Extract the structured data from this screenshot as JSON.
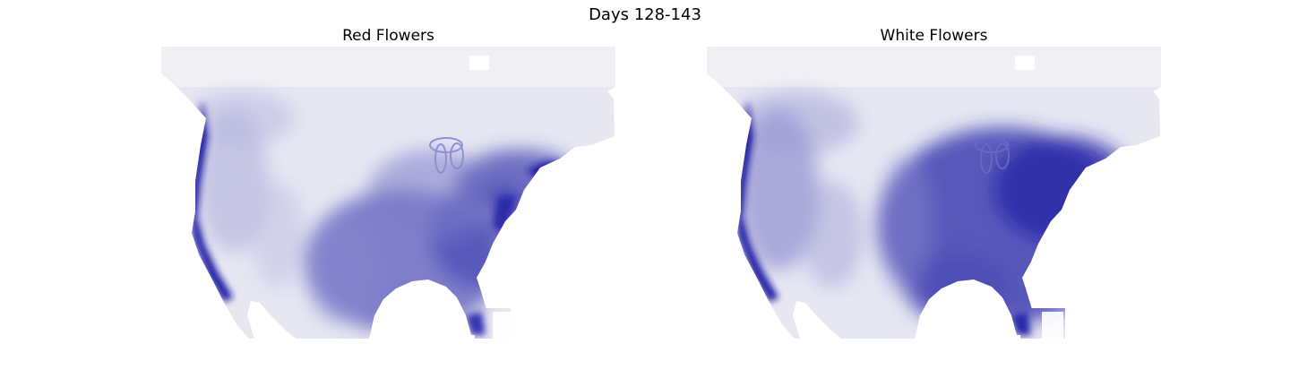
{
  "figure": {
    "title": "Days 128-143"
  },
  "panels": [
    {
      "title": "Red Flowers",
      "colormap": {
        "low": "#ffffff",
        "high": "#1010a0"
      },
      "pattern": "strong-west-coast-and-northeast"
    },
    {
      "title": "White Flowers",
      "colormap": {
        "low": "#ffffff",
        "high": "#1010a0"
      },
      "pattern": "strong-east-and-west-coast"
    }
  ]
}
